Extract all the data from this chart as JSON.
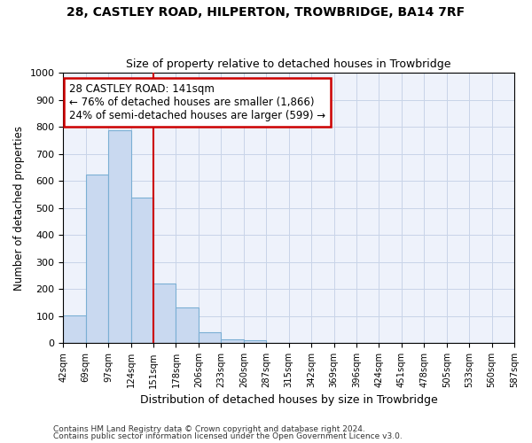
{
  "title": "28, CASTLEY ROAD, HILPERTON, TROWBRIDGE, BA14 7RF",
  "subtitle": "Size of property relative to detached houses in Trowbridge",
  "xlabel": "Distribution of detached houses by size in Trowbridge",
  "ylabel": "Number of detached properties",
  "bar_values": [
    103,
    622,
    787,
    537,
    221,
    133,
    42,
    16,
    11,
    0,
    0,
    0,
    0,
    0,
    0,
    0,
    0,
    0,
    0,
    0
  ],
  "bar_labels": [
    "42sqm",
    "69sqm",
    "97sqm",
    "124sqm",
    "151sqm",
    "178sqm",
    "206sqm",
    "233sqm",
    "260sqm",
    "287sqm",
    "315sqm",
    "342sqm",
    "369sqm",
    "396sqm",
    "424sqm",
    "451sqm",
    "478sqm",
    "505sqm",
    "533sqm",
    "560sqm",
    "587sqm"
  ],
  "bar_color": "#c9d9f0",
  "bar_edge_color": "#7bafd4",
  "vline_x_index": 4,
  "vline_color": "#cc0000",
  "annotation_text": "28 CASTLEY ROAD: 141sqm\n← 76% of detached houses are smaller (1,866)\n24% of semi-detached houses are larger (599) →",
  "annotation_box_color": "#ffffff",
  "annotation_box_edge": "#cc0000",
  "grid_color": "#c8d4e8",
  "background_color": "#eef2fb",
  "footer_line1": "Contains HM Land Registry data © Crown copyright and database right 2024.",
  "footer_line2": "Contains public sector information licensed under the Open Government Licence v3.0.",
  "ylim": [
    0,
    1000
  ],
  "num_bars": 20
}
